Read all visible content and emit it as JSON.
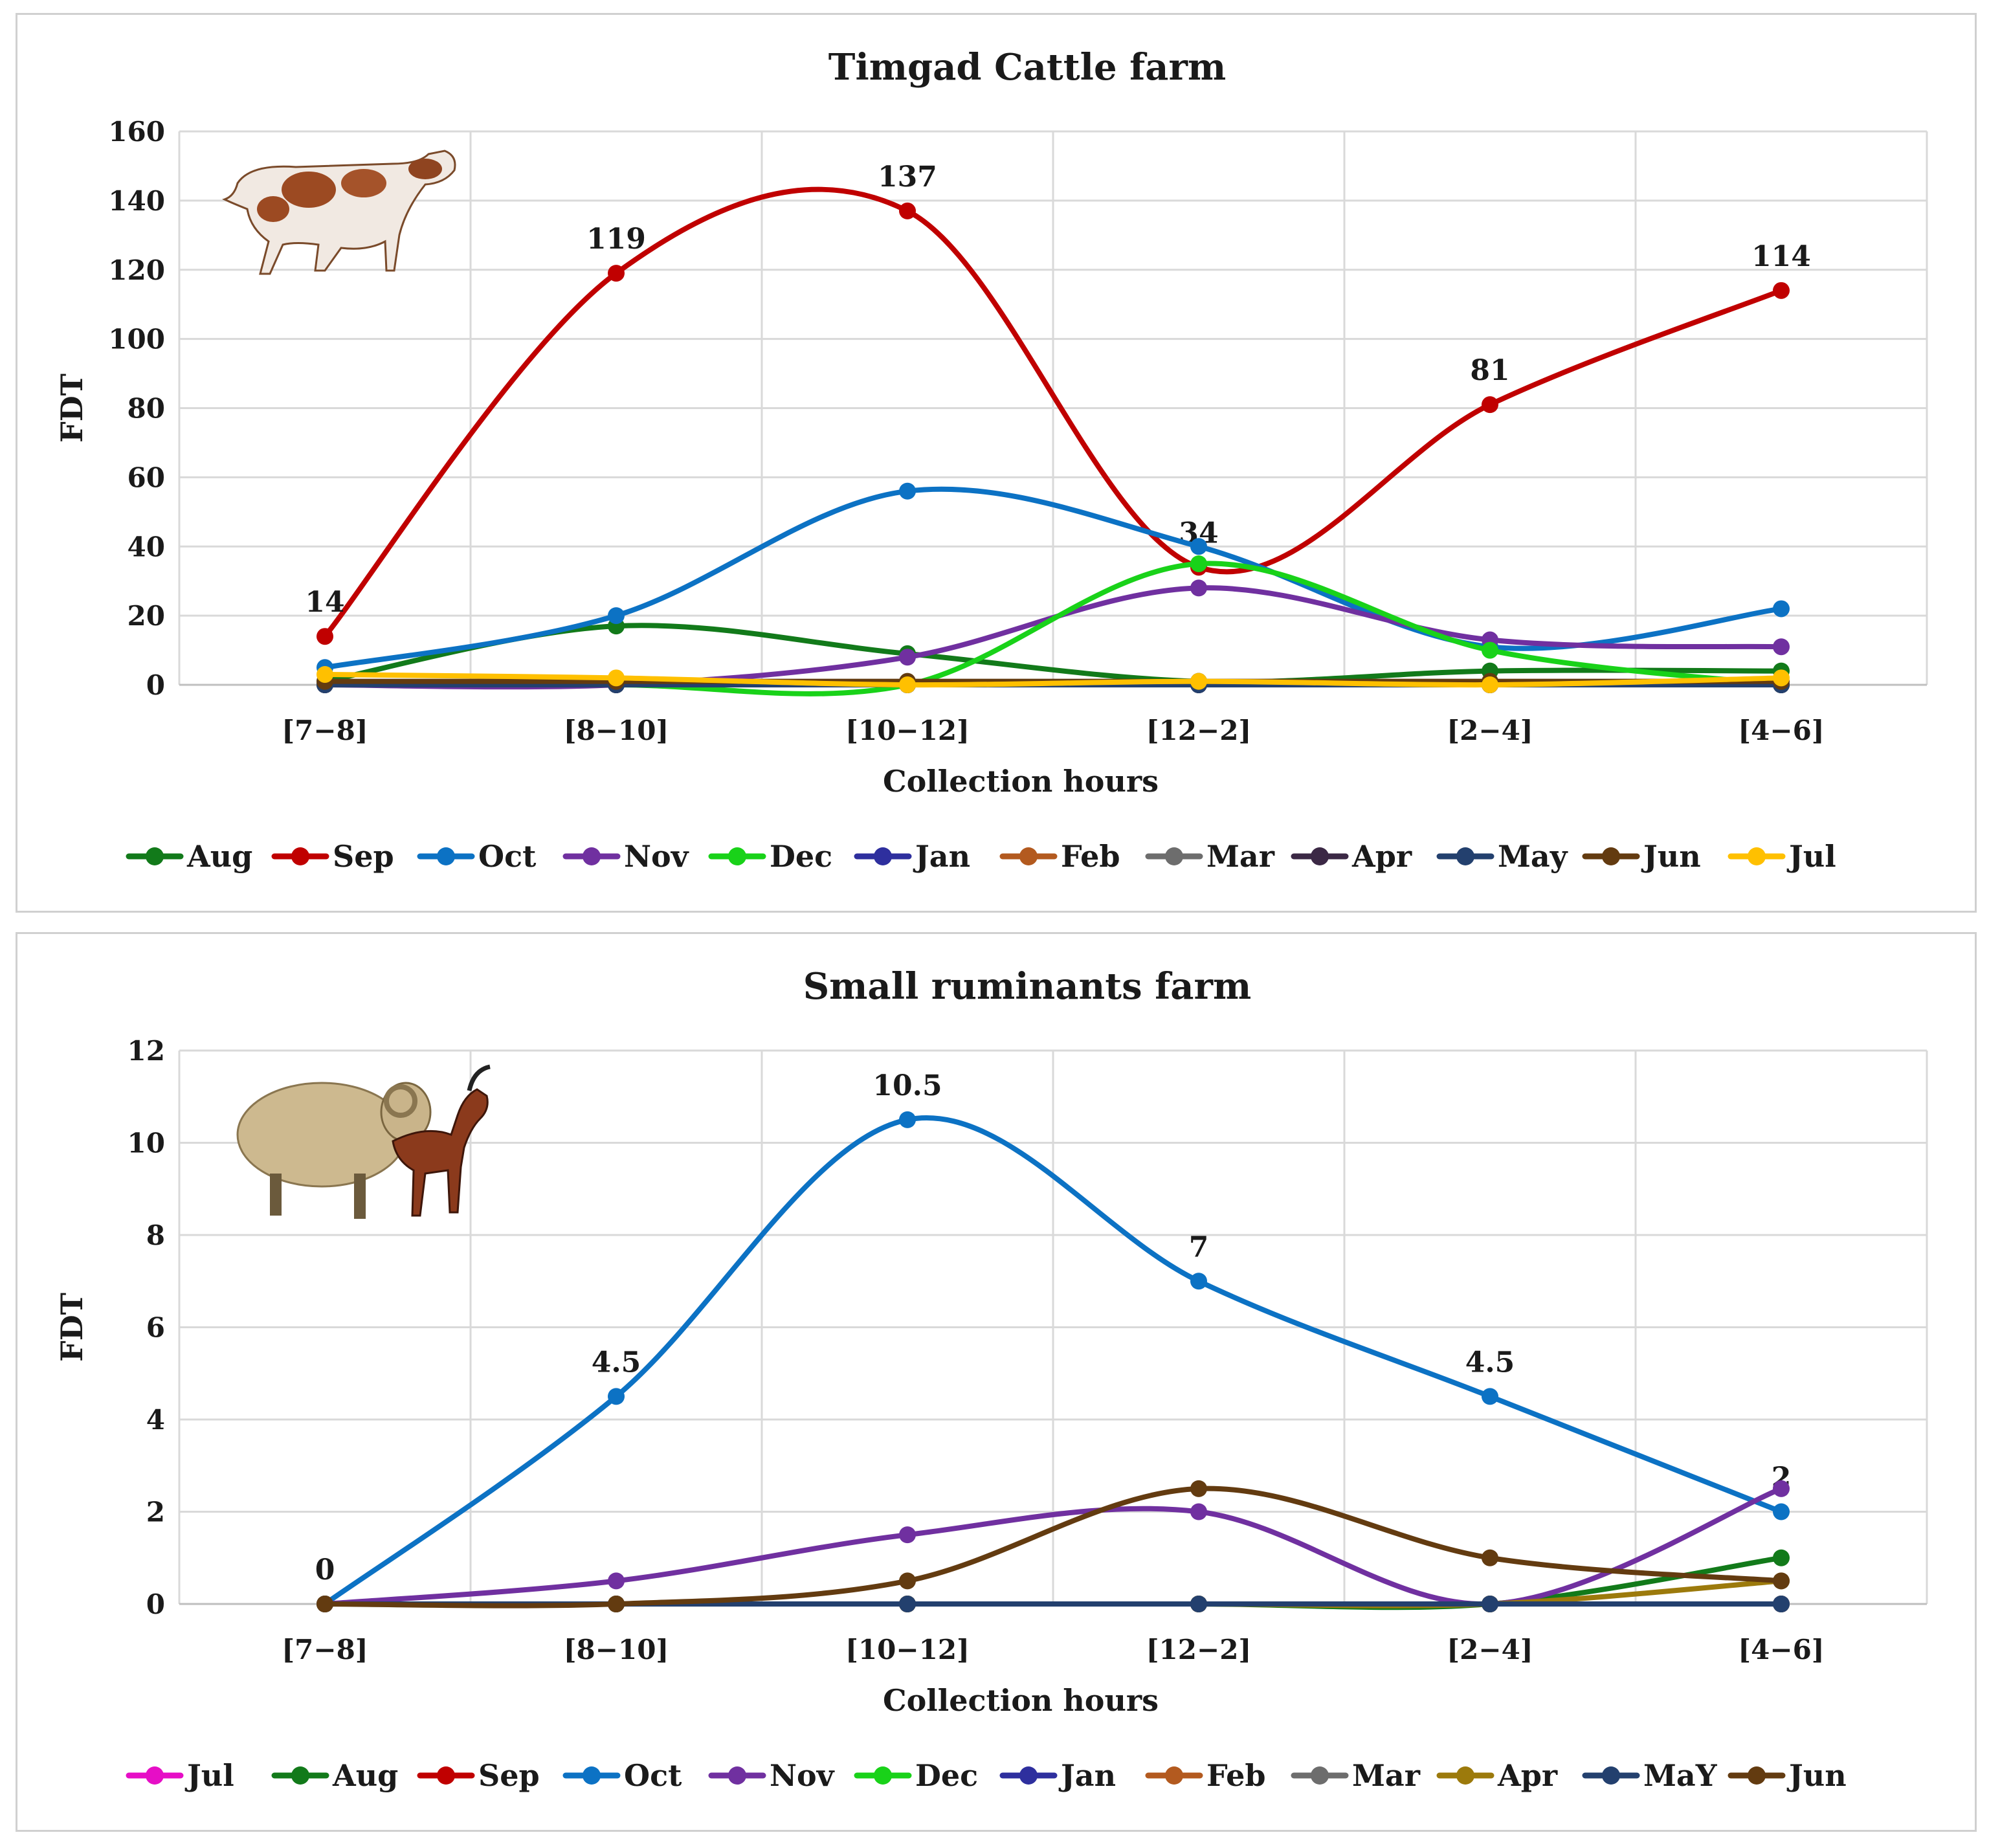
{
  "chart_data": [
    {
      "type": "line",
      "title": "Timgad Cattle  farm",
      "xlabel": "Collection hours",
      "ylabel": "FDT",
      "categories": [
        "[7−8]",
        "[8−10]",
        "[10−12]",
        "[12−2]",
        "[2−4]",
        "[4−6]"
      ],
      "ylim": [
        0,
        160
      ],
      "yticks": [
        0,
        20,
        40,
        60,
        80,
        100,
        120,
        140,
        160
      ],
      "grid": true,
      "legend_position": "bottom",
      "illustration": "cow",
      "series": [
        {
          "name": "Aug",
          "color": "#127a1a",
          "values": [
            1,
            17,
            9,
            1,
            4,
            4
          ]
        },
        {
          "name": "Sep",
          "color": "#c00000",
          "values": [
            14,
            119,
            137,
            34,
            81,
            114
          ],
          "labels": [
            "14",
            "119",
            "137",
            "34",
            "81",
            "114"
          ]
        },
        {
          "name": "Oct",
          "color": "#0c72c4",
          "values": [
            5,
            20,
            56,
            40,
            11,
            22
          ]
        },
        {
          "name": "Nov",
          "color": "#7030a0",
          "values": [
            0,
            0,
            8,
            28,
            13,
            11
          ]
        },
        {
          "name": "Dec",
          "color": "#19d219",
          "values": [
            0,
            0,
            0,
            35,
            10,
            0
          ]
        },
        {
          "name": "Jan",
          "color": "#2e2f9e",
          "values": [
            0,
            0,
            0,
            0,
            0,
            0
          ]
        },
        {
          "name": "Feb",
          "color": "#b35a1f",
          "values": [
            0,
            0,
            0,
            0,
            0,
            0
          ]
        },
        {
          "name": "Mar",
          "color": "#6d6d6d",
          "values": [
            0,
            0,
            0,
            0,
            0,
            0
          ]
        },
        {
          "name": "Apr",
          "color": "#3b2845",
          "values": [
            0,
            0,
            0,
            0,
            0,
            0
          ]
        },
        {
          "name": "May",
          "color": "#23406e",
          "values": [
            0,
            0,
            0,
            0,
            0,
            0
          ]
        },
        {
          "name": "Jun",
          "color": "#633b10",
          "values": [
            1,
            1,
            1,
            1,
            1,
            1
          ]
        },
        {
          "name": "Jul",
          "color": "#ffc000",
          "values": [
            3,
            2,
            0,
            1,
            0,
            2
          ]
        }
      ]
    },
    {
      "type": "line",
      "title": "Small ruminants farm",
      "xlabel": "Collection hours",
      "ylabel": "FDT",
      "categories": [
        "[7−8]",
        "[8−10]",
        "[10−12]",
        "[12−2]",
        "[2−4]",
        "[4−6]"
      ],
      "ylim": [
        0,
        12
      ],
      "yticks": [
        0,
        2,
        4,
        6,
        8,
        10,
        12
      ],
      "grid": true,
      "legend_position": "bottom",
      "illustration": "sheep-and-goat",
      "series": [
        {
          "name": "Jul",
          "color": "#e60ec6",
          "values": [
            0,
            0,
            0,
            0,
            0,
            0
          ]
        },
        {
          "name": "Aug",
          "color": "#127a1a",
          "values": [
            0,
            0,
            0,
            0,
            0,
            1
          ]
        },
        {
          "name": "Sep",
          "color": "#c00000",
          "values": [
            0,
            0,
            0,
            0,
            0,
            0
          ]
        },
        {
          "name": "Oct",
          "color": "#0c72c4",
          "values": [
            0,
            4.5,
            10.5,
            7,
            4.5,
            2
          ],
          "labels": [
            "0",
            "4.5",
            "10.5",
            "7",
            "4.5",
            "2"
          ]
        },
        {
          "name": "Nov",
          "color": "#7030a0",
          "values": [
            0,
            0.5,
            1.5,
            2,
            0,
            2.5
          ]
        },
        {
          "name": "Dec",
          "color": "#19d219",
          "values": [
            0,
            0,
            0,
            0,
            0,
            0
          ]
        },
        {
          "name": "Jan",
          "color": "#2e2f9e",
          "values": [
            0,
            0,
            0,
            0,
            0,
            0
          ]
        },
        {
          "name": "Feb",
          "color": "#b35a1f",
          "values": [
            0,
            0,
            0,
            0,
            0,
            0
          ]
        },
        {
          "name": "Mar",
          "color": "#6d6d6d",
          "values": [
            0,
            0,
            0,
            0,
            0,
            0
          ]
        },
        {
          "name": "Apr",
          "color": "#9c7a0c",
          "values": [
            0,
            0,
            0,
            0,
            0,
            0.5
          ]
        },
        {
          "name": "MaY",
          "color": "#23406e",
          "values": [
            0,
            0,
            0,
            0,
            0,
            0
          ]
        },
        {
          "name": "Jun",
          "color": "#633b10",
          "values": [
            0,
            0,
            0.5,
            2.5,
            1,
            0.5
          ]
        }
      ]
    }
  ]
}
